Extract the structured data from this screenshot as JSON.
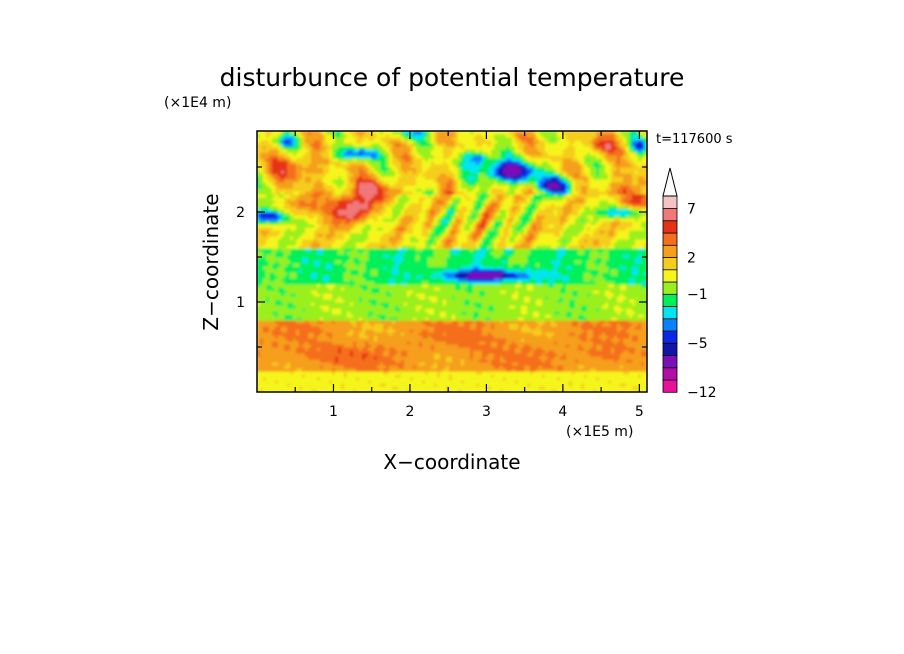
{
  "chart_data": {
    "type": "heatmap",
    "title": "disturbunce of potential temperature",
    "time_label": "t=117600 s",
    "xlabel": "X−coordinate",
    "ylabel": "Z−coordinate",
    "x_unit": "(×1E5 m)",
    "y_unit": "(×1E4 m)",
    "xlim": [
      0,
      5.1
    ],
    "ylim": [
      0,
      2.9
    ],
    "x_ticks": [
      "1",
      "2",
      "3",
      "4",
      "5"
    ],
    "x_tick_values": [
      1,
      2,
      3,
      4,
      5
    ],
    "y_ticks": [
      "1",
      "2"
    ],
    "y_tick_values": [
      1,
      2
    ],
    "colorbar": {
      "levels": [
        -12,
        -10,
        -8,
        -6,
        -5,
        -4,
        -3,
        -2,
        -1,
        0,
        1,
        2,
        3,
        4,
        5,
        7,
        9
      ],
      "labels": [
        "−12",
        "−5",
        "−1",
        "2",
        "7"
      ],
      "label_values": [
        -12,
        -5,
        -1,
        2,
        7
      ],
      "colors": [
        "#e8129a",
        "#b00fa8",
        "#7a10b8",
        "#1414a8",
        "#0a28e6",
        "#0a82ff",
        "#00e6f0",
        "#00f05a",
        "#9af01e",
        "#f5f51e",
        "#f5cd1e",
        "#f59f1e",
        "#f56e1e",
        "#e63214",
        "#f07878",
        "#f5c3c3"
      ],
      "extend": "max"
    },
    "field_description_regions": [
      {
        "z_range": [
          0,
          0.25
        ],
        "dominant_value": 0.5
      },
      {
        "z_range": [
          0.25,
          0.8
        ],
        "dominant_value": 2.5
      },
      {
        "z_range": [
          0.8,
          1.2
        ],
        "dominant_value": -0.5
      },
      {
        "z_range": [
          1.2,
          1.6
        ],
        "dominant_value": -1.5
      },
      {
        "z_range": [
          1.6,
          2.2
        ],
        "dominant_value": 2
      },
      {
        "z_range": [
          2.2,
          2.9
        ],
        "dominant_value": 1
      }
    ]
  }
}
